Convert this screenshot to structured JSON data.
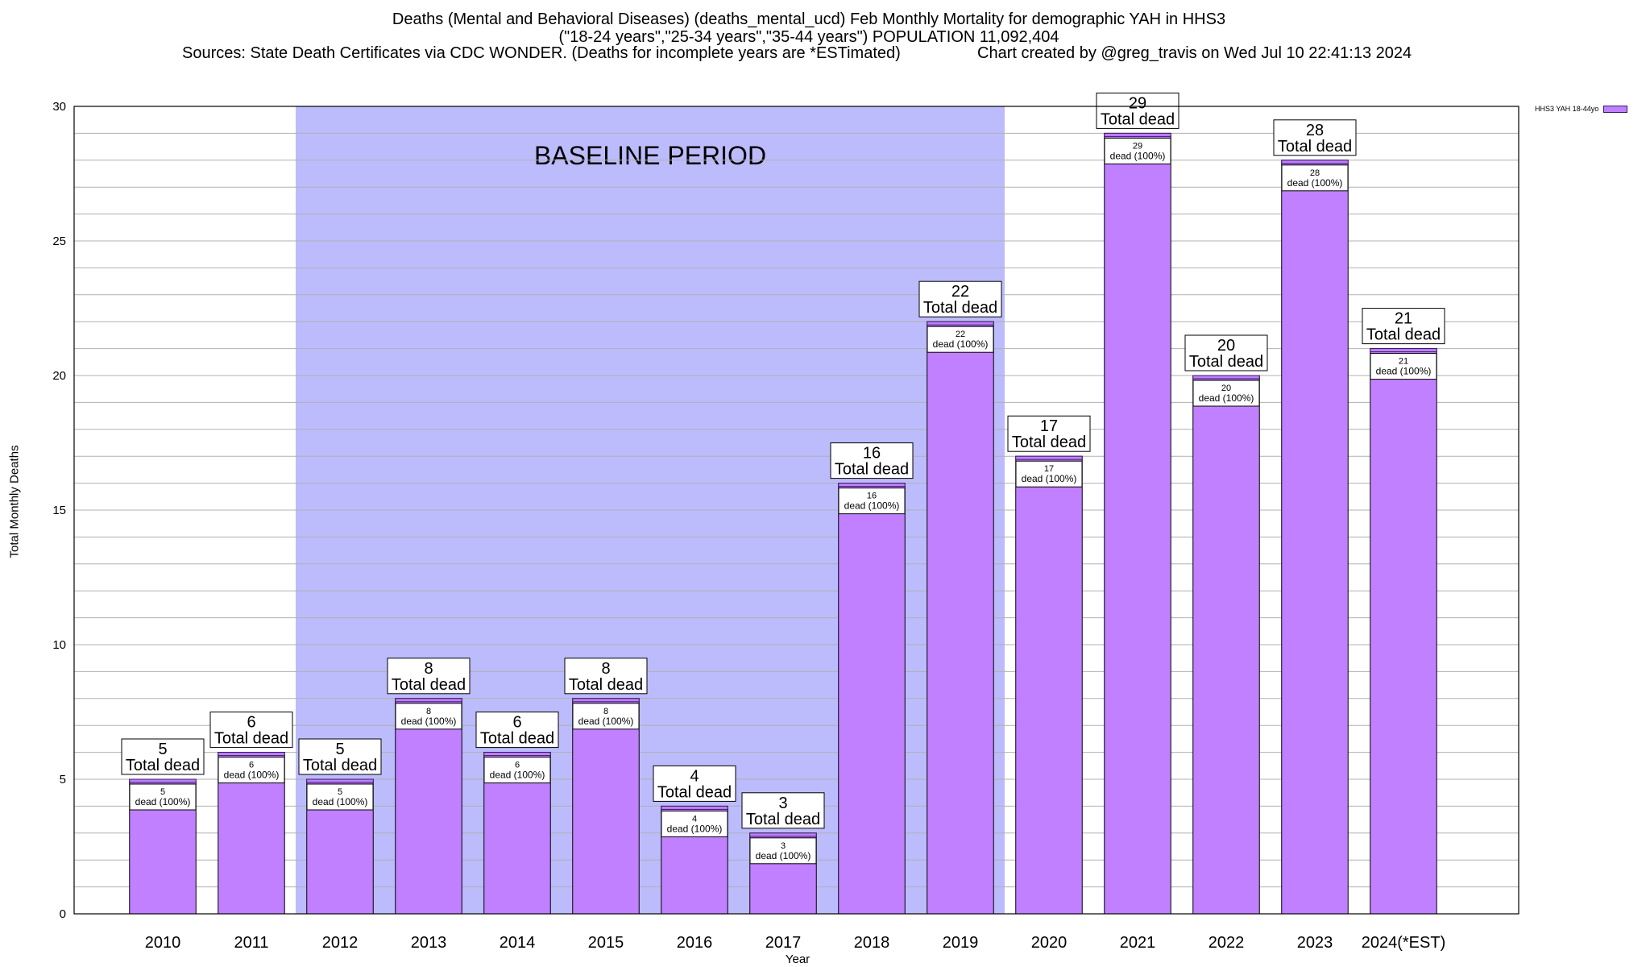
{
  "header": {
    "title_line1": "Deaths (Mental and Behavioral Diseases) (deaths_mental_ucd) Feb Monthly Mortality for demographic YAH in HHS3",
    "title_line2": "(\"18-24 years\",\"25-34 years\",\"35-44 years\") POPULATION 11,092,404",
    "sources": "Sources: State Death Certificates via CDC WONDER. (Deaths for incomplete years are *ESTimated)",
    "credit": "Chart created by @greg_travis on Wed Jul 10 22:41:13 2024"
  },
  "colors": {
    "bar_fill": "#c080ff",
    "bar_edge": "#3a1a66",
    "baseline_shade": "#bcbcfc",
    "grid": "#b0b0b0"
  },
  "chart_data": {
    "type": "bar",
    "xlabel": "Year",
    "ylabel": "Total Monthly Deaths",
    "ylim": [
      0,
      30
    ],
    "yticks": [
      0,
      5,
      10,
      15,
      20,
      25,
      30
    ],
    "grid": true,
    "legend_position": "top-right",
    "categories": [
      "2010",
      "2011",
      "2012",
      "2013",
      "2014",
      "2015",
      "2016",
      "2017",
      "2018",
      "2019",
      "2020",
      "2021",
      "2022",
      "2023",
      "2024(*EST)"
    ],
    "series": [
      {
        "name": "HHS3 YAH 18-44yo",
        "values": [
          5,
          6,
          5,
          8,
          6,
          8,
          4,
          3,
          16,
          22,
          17,
          29,
          20,
          28,
          21
        ]
      }
    ],
    "total_label": "Total dead",
    "inner_label": "dead (100%)",
    "baseline": {
      "label": "BASELINE PERIOD",
      "from": "2012",
      "to": "2019"
    }
  }
}
